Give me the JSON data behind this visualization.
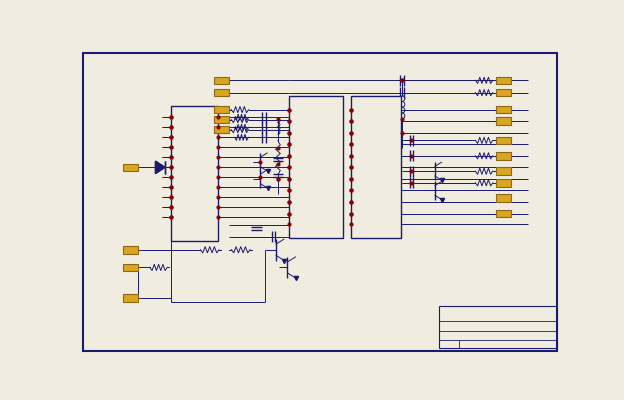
{
  "bg_color": "#F0EDE0",
  "border_color": "#1a1a6e",
  "sc": "#1a1a6e",
  "comp": "#DAA520",
  "red": "#8B0000",
  "figsize": [
    6.24,
    4.0
  ],
  "dpi": 100
}
